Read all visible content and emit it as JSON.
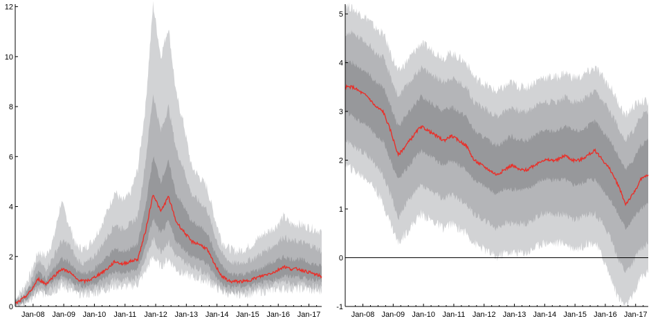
{
  "colors": {
    "band_outer": "#d2d3d5",
    "band_middle": "#b4b5b8",
    "band_inner": "#97989b",
    "median_line": "#e8302a",
    "axis": "#000000"
  },
  "chart_data": [
    {
      "type": "area",
      "title": "",
      "xlabel": "",
      "ylabel": "",
      "x_ticks": [
        "Jan-08",
        "Jan-09",
        "Jan-10",
        "Jan-11",
        "Jan-12",
        "Jan-13",
        "Jan-14",
        "Jan-15",
        "Jan-16",
        "Jan-17"
      ],
      "y_ticks": [
        "0",
        "2",
        "4",
        "6",
        "8",
        "10",
        "12"
      ],
      "y_tick_values": [
        0,
        2,
        4,
        6,
        8,
        10,
        12
      ],
      "ylim": [
        0,
        12.1
      ],
      "xlim": [
        "2007-06",
        "2017-06"
      ],
      "zero_line": false,
      "series": [
        {
          "role": "median",
          "x": [
            "2007-06",
            "2007-09",
            "2007-12",
            "2008-03",
            "2008-06",
            "2008-09",
            "2008-12",
            "2009-03",
            "2009-06",
            "2009-09",
            "2009-12",
            "2010-03",
            "2010-06",
            "2010-09",
            "2010-12",
            "2011-03",
            "2011-06",
            "2011-09",
            "2011-12",
            "2012-03",
            "2012-06",
            "2012-09",
            "2012-12",
            "2013-03",
            "2013-06",
            "2013-09",
            "2013-12",
            "2014-03",
            "2014-06",
            "2014-09",
            "2014-12",
            "2015-03",
            "2015-06",
            "2015-09",
            "2015-12",
            "2016-03",
            "2016-06",
            "2016-09",
            "2016-12",
            "2017-03",
            "2017-06"
          ],
          "values": [
            0.1,
            0.3,
            0.6,
            1.1,
            0.9,
            1.2,
            1.5,
            1.4,
            1.1,
            1.0,
            1.1,
            1.3,
            1.5,
            1.8,
            1.7,
            1.8,
            1.9,
            3.0,
            4.5,
            3.8,
            4.4,
            3.4,
            3.0,
            2.6,
            2.5,
            2.3,
            1.7,
            1.2,
            1.0,
            1.0,
            1.0,
            1.1,
            1.2,
            1.3,
            1.4,
            1.6,
            1.5,
            1.5,
            1.4,
            1.3,
            1.2
          ]
        },
        {
          "role": "inner_band",
          "lower": [
            0.05,
            0.2,
            0.5,
            0.9,
            0.8,
            1.0,
            1.2,
            1.1,
            0.9,
            0.8,
            0.9,
            1.0,
            1.2,
            1.4,
            1.3,
            1.4,
            1.5,
            2.4,
            3.5,
            2.9,
            3.4,
            2.6,
            2.3,
            2.0,
            1.9,
            1.7,
            1.3,
            0.9,
            0.8,
            0.8,
            0.8,
            0.9,
            1.0,
            1.0,
            1.1,
            1.2,
            1.2,
            1.2,
            1.1,
            1.1,
            1.0
          ],
          "upper": [
            0.15,
            0.4,
            0.8,
            1.4,
            1.1,
            1.5,
            1.9,
            1.8,
            1.4,
            1.3,
            1.4,
            1.7,
            2.0,
            2.3,
            2.2,
            2.3,
            2.5,
            4.0,
            6.0,
            5.0,
            5.8,
            4.5,
            4.0,
            3.4,
            3.2,
            3.0,
            2.2,
            1.6,
            1.3,
            1.3,
            1.3,
            1.4,
            1.5,
            1.7,
            1.8,
            2.0,
            1.9,
            1.9,
            1.8,
            1.7,
            1.6
          ]
        },
        {
          "role": "middle_band",
          "lower": [
            0.0,
            0.1,
            0.4,
            0.7,
            0.6,
            0.8,
            1.0,
            0.9,
            0.7,
            0.6,
            0.7,
            0.8,
            0.9,
            1.1,
            1.0,
            1.1,
            1.2,
            1.9,
            2.7,
            2.2,
            2.6,
            2.0,
            1.8,
            1.6,
            1.5,
            1.3,
            1.0,
            0.7,
            0.6,
            0.6,
            0.6,
            0.7,
            0.8,
            0.8,
            0.9,
            1.0,
            0.9,
            0.9,
            0.9,
            0.8,
            0.8
          ],
          "upper": [
            0.2,
            0.5,
            1.0,
            1.8,
            1.5,
            2.0,
            2.6,
            2.5,
            1.9,
            1.7,
            1.9,
            2.3,
            2.8,
            3.3,
            3.1,
            3.3,
            3.6,
            5.8,
            8.5,
            7.0,
            8.0,
            6.3,
            5.5,
            4.5,
            4.2,
            3.9,
            2.9,
            2.1,
            1.8,
            1.7,
            1.8,
            1.9,
            2.1,
            2.3,
            2.5,
            2.8,
            2.6,
            2.6,
            2.5,
            2.4,
            2.2
          ]
        },
        {
          "role": "outer_band",
          "lower": [
            0.0,
            0.05,
            0.3,
            0.5,
            0.5,
            0.6,
            0.8,
            0.7,
            0.5,
            0.5,
            0.5,
            0.6,
            0.7,
            0.8,
            0.8,
            0.8,
            0.9,
            1.4,
            2.0,
            1.6,
            1.9,
            1.5,
            1.3,
            1.2,
            1.1,
            1.0,
            0.8,
            0.6,
            0.5,
            0.5,
            0.5,
            0.5,
            0.6,
            0.6,
            0.7,
            0.7,
            0.7,
            0.7,
            0.7,
            0.6,
            0.6
          ],
          "upper": [
            0.3,
            0.7,
            1.3,
            2.2,
            2.0,
            2.7,
            4.2,
            3.3,
            2.4,
            2.3,
            2.6,
            3.1,
            3.8,
            4.6,
            4.2,
            4.5,
            5.5,
            8.0,
            12.1,
            10.0,
            11.2,
            8.5,
            7.3,
            5.6,
            5.2,
            4.8,
            3.6,
            2.6,
            2.3,
            2.2,
            2.3,
            2.5,
            2.8,
            3.0,
            3.2,
            3.6,
            3.3,
            3.3,
            3.2,
            3.1,
            3.0
          ]
        }
      ]
    },
    {
      "type": "area",
      "title": "",
      "xlabel": "",
      "ylabel": "",
      "x_ticks": [
        "Jan-08",
        "Jan-09",
        "Jan-10",
        "Jan-11",
        "Jan-12",
        "Jan-13",
        "Jan-14",
        "Jan-15",
        "Jan-16",
        "Jan-17"
      ],
      "y_ticks": [
        "-1",
        "0",
        "1",
        "2",
        "3",
        "4",
        "5"
      ],
      "y_tick_values": [
        -1,
        0,
        1,
        2,
        3,
        4,
        5
      ],
      "ylim": [
        -1,
        5.2
      ],
      "xlim": [
        "2007-06",
        "2017-06"
      ],
      "zero_line": true,
      "series": [
        {
          "role": "median",
          "x": [
            "2007-06",
            "2007-09",
            "2007-12",
            "2008-03",
            "2008-06",
            "2008-09",
            "2008-12",
            "2009-03",
            "2009-06",
            "2009-09",
            "2009-12",
            "2010-03",
            "2010-06",
            "2010-09",
            "2010-12",
            "2011-03",
            "2011-06",
            "2011-09",
            "2011-12",
            "2012-03",
            "2012-06",
            "2012-09",
            "2012-12",
            "2013-03",
            "2013-06",
            "2013-09",
            "2013-12",
            "2014-03",
            "2014-06",
            "2014-09",
            "2014-12",
            "2015-03",
            "2015-06",
            "2015-09",
            "2015-12",
            "2016-03",
            "2016-06",
            "2016-09",
            "2016-12",
            "2017-03",
            "2017-06"
          ],
          "values": [
            3.5,
            3.5,
            3.4,
            3.3,
            3.1,
            3.0,
            2.6,
            2.1,
            2.3,
            2.5,
            2.7,
            2.6,
            2.5,
            2.4,
            2.5,
            2.4,
            2.3,
            2.0,
            1.9,
            1.8,
            1.7,
            1.8,
            1.9,
            1.8,
            1.8,
            1.9,
            2.0,
            2.0,
            2.0,
            2.1,
            2.0,
            2.0,
            2.1,
            2.2,
            2.0,
            1.8,
            1.5,
            1.1,
            1.3,
            1.6,
            1.7
          ]
        },
        {
          "role": "inner_band",
          "lower": [
            3.0,
            2.9,
            2.8,
            2.7,
            2.5,
            2.4,
            2.0,
            1.6,
            1.8,
            2.0,
            2.2,
            2.1,
            2.0,
            1.9,
            2.0,
            1.9,
            1.8,
            1.6,
            1.5,
            1.4,
            1.3,
            1.4,
            1.4,
            1.4,
            1.4,
            1.5,
            1.6,
            1.6,
            1.6,
            1.6,
            1.5,
            1.5,
            1.6,
            1.6,
            1.4,
            1.2,
            0.9,
            0.6,
            0.8,
            1.0,
            1.1
          ],
          "upper": [
            4.0,
            4.0,
            3.9,
            3.8,
            3.6,
            3.5,
            3.1,
            2.7,
            2.9,
            3.1,
            3.3,
            3.2,
            3.1,
            3.0,
            3.1,
            3.0,
            2.9,
            2.6,
            2.5,
            2.4,
            2.3,
            2.4,
            2.5,
            2.4,
            2.4,
            2.5,
            2.6,
            2.6,
            2.6,
            2.7,
            2.6,
            2.6,
            2.7,
            2.8,
            2.6,
            2.4,
            2.1,
            1.8,
            2.0,
            2.3,
            2.4
          ]
        },
        {
          "role": "middle_band",
          "lower": [
            2.4,
            2.3,
            2.2,
            2.1,
            1.9,
            1.7,
            1.3,
            0.8,
            1.1,
            1.3,
            1.5,
            1.4,
            1.3,
            1.2,
            1.3,
            1.2,
            1.1,
            0.9,
            0.8,
            0.7,
            0.6,
            0.7,
            0.7,
            0.7,
            0.7,
            0.8,
            0.9,
            0.9,
            0.9,
            0.9,
            0.8,
            0.8,
            0.9,
            0.9,
            0.7,
            0.4,
            0.0,
            -0.3,
            -0.1,
            0.2,
            0.3
          ],
          "upper": [
            4.6,
            4.6,
            4.5,
            4.4,
            4.2,
            4.1,
            3.7,
            3.3,
            3.5,
            3.7,
            3.9,
            3.8,
            3.7,
            3.6,
            3.7,
            3.6,
            3.5,
            3.2,
            3.1,
            3.0,
            2.9,
            3.0,
            3.1,
            3.0,
            3.0,
            3.1,
            3.2,
            3.2,
            3.2,
            3.3,
            3.2,
            3.2,
            3.3,
            3.4,
            3.2,
            3.0,
            2.7,
            2.4,
            2.6,
            2.9,
            3.0
          ]
        },
        {
          "role": "outer_band",
          "lower": [
            1.9,
            1.8,
            1.7,
            1.6,
            1.4,
            1.1,
            0.7,
            0.3,
            0.5,
            0.7,
            0.9,
            0.8,
            0.7,
            0.6,
            0.7,
            0.6,
            0.5,
            0.3,
            0.2,
            0.1,
            0.0,
            0.1,
            0.1,
            0.1,
            0.1,
            0.2,
            0.3,
            0.3,
            0.3,
            0.3,
            0.2,
            0.2,
            0.3,
            0.3,
            0.0,
            -0.4,
            -0.8,
            -1.0,
            -0.8,
            -0.4,
            -0.3
          ],
          "upper": [
            5.2,
            5.1,
            5.0,
            4.9,
            4.7,
            4.6,
            4.2,
            3.8,
            4.0,
            4.2,
            4.4,
            4.3,
            4.2,
            4.1,
            4.2,
            4.1,
            4.0,
            3.7,
            3.6,
            3.5,
            3.4,
            3.5,
            3.6,
            3.5,
            3.5,
            3.6,
            3.7,
            3.7,
            3.7,
            3.8,
            3.7,
            3.7,
            3.8,
            3.9,
            3.7,
            3.5,
            3.2,
            2.9,
            3.1,
            3.2,
            3.2
          ]
        }
      ]
    }
  ]
}
